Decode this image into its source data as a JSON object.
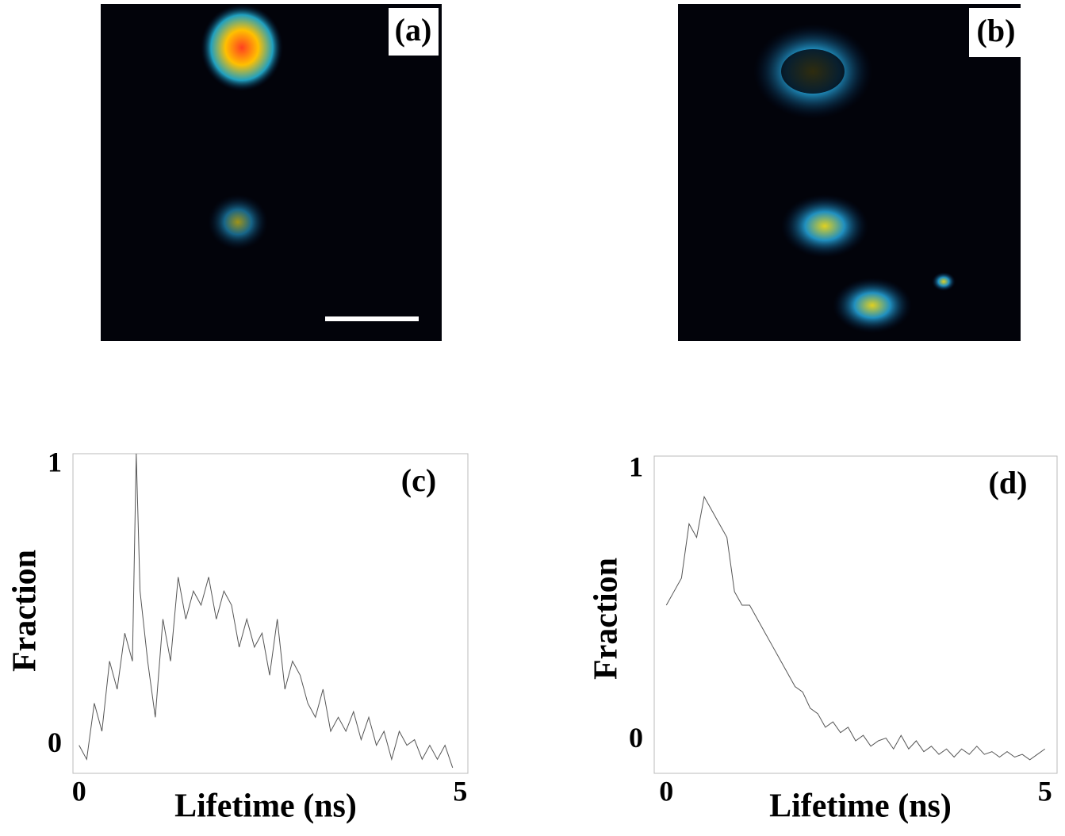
{
  "panels": [
    {
      "label": "(a)"
    },
    {
      "label": "(b)"
    }
  ],
  "chart_data": [
    {
      "type": "line",
      "annotation": "(c)",
      "xlabel": "Lifetime (ns)",
      "ylabel": "Fraction",
      "xlim": [
        -0.08,
        5.1
      ],
      "ylim": [
        -0.1,
        1.04
      ],
      "xticks": [
        0,
        5
      ],
      "yticks": [
        0,
        1
      ],
      "grid": false,
      "x": [
        0,
        0.1,
        0.2,
        0.3,
        0.4,
        0.5,
        0.6,
        0.7,
        0.75,
        0.8,
        0.9,
        1.0,
        1.1,
        1.2,
        1.3,
        1.4,
        1.5,
        1.6,
        1.7,
        1.8,
        1.9,
        2.0,
        2.1,
        2.2,
        2.3,
        2.4,
        2.5,
        2.6,
        2.7,
        2.8,
        2.9,
        3.0,
        3.1,
        3.2,
        3.3,
        3.4,
        3.5,
        3.6,
        3.7,
        3.8,
        3.9,
        4.0,
        4.1,
        4.2,
        4.3,
        4.4,
        4.5,
        4.6,
        4.7,
        4.8,
        4.9
      ],
      "series": [
        {
          "color": "#555555",
          "values": [
            0.0,
            -0.05,
            0.15,
            0.05,
            0.3,
            0.2,
            0.4,
            0.3,
            1.04,
            0.55,
            0.3,
            0.1,
            0.45,
            0.3,
            0.6,
            0.45,
            0.55,
            0.5,
            0.6,
            0.45,
            0.55,
            0.5,
            0.35,
            0.45,
            0.35,
            0.4,
            0.25,
            0.45,
            0.2,
            0.3,
            0.25,
            0.15,
            0.1,
            0.2,
            0.05,
            0.1,
            0.05,
            0.12,
            0.02,
            0.1,
            0.0,
            0.05,
            -0.05,
            0.05,
            0.0,
            0.02,
            -0.05,
            0.0,
            -0.05,
            0.0,
            -0.08
          ]
        }
      ]
    },
    {
      "type": "line",
      "annotation": "(d)",
      "xlabel": "Lifetime (ns)",
      "ylabel": "Fraction",
      "xlim": [
        -0.16,
        5.16
      ],
      "ylim": [
        -0.12,
        1.05
      ],
      "xticks": [
        0,
        5
      ],
      "yticks": [
        0,
        1
      ],
      "grid": false,
      "x": [
        0,
        0.1,
        0.2,
        0.3,
        0.4,
        0.5,
        0.6,
        0.7,
        0.8,
        0.9,
        1.0,
        1.1,
        1.2,
        1.3,
        1.4,
        1.5,
        1.6,
        1.7,
        1.8,
        1.9,
        2.0,
        2.1,
        2.2,
        2.3,
        2.4,
        2.5,
        2.6,
        2.7,
        2.8,
        2.9,
        3.0,
        3.1,
        3.2,
        3.3,
        3.4,
        3.5,
        3.6,
        3.7,
        3.8,
        3.9,
        4.0,
        4.1,
        4.2,
        4.3,
        4.4,
        4.5,
        4.6,
        4.7,
        4.8,
        4.9,
        5.0
      ],
      "series": [
        {
          "color": "#555555",
          "values": [
            0.5,
            0.55,
            0.6,
            0.8,
            0.75,
            0.9,
            0.85,
            0.8,
            0.75,
            0.55,
            0.5,
            0.5,
            0.45,
            0.4,
            0.35,
            0.3,
            0.25,
            0.2,
            0.18,
            0.12,
            0.1,
            0.05,
            0.07,
            0.03,
            0.05,
            0.0,
            0.02,
            -0.02,
            0.0,
            0.01,
            -0.03,
            0.02,
            -0.03,
            0.0,
            -0.04,
            -0.02,
            -0.05,
            -0.03,
            -0.06,
            -0.03,
            -0.05,
            -0.02,
            -0.05,
            -0.04,
            -0.06,
            -0.04,
            -0.06,
            -0.05,
            -0.07,
            -0.05,
            -0.03
          ]
        }
      ]
    }
  ]
}
